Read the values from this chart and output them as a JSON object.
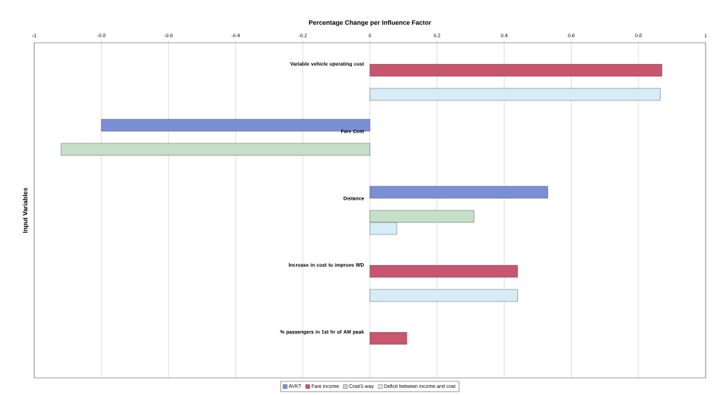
{
  "chart_data": {
    "type": "bar",
    "orientation": "horizontal",
    "title": "Percentage Change per Influence Factor",
    "ylabel": "Input Variables",
    "categories": [
      "Variable vehicle operating cost",
      "Fare Cost",
      "Distance",
      "Increase in cost to improve WD",
      "% passengers in 1st hr of AM peak"
    ],
    "series": [
      {
        "name": "AVKT",
        "color": "#7b8fd6",
        "values": [
          null,
          -0.8,
          0.53,
          null,
          null
        ]
      },
      {
        "name": "Fare income",
        "color": "#c8566e",
        "values": [
          0.87,
          null,
          null,
          0.44,
          0.11
        ]
      },
      {
        "name": "Cost/1-way",
        "color": "#c6dfc9",
        "values": [
          null,
          -0.92,
          0.31,
          null,
          null
        ]
      },
      {
        "name": "Deficit between income and cost",
        "color": "#d6ecf7",
        "values": [
          0.865,
          null,
          0.08,
          0.44,
          null
        ]
      }
    ],
    "xlim": [
      -1,
      1
    ],
    "xticks": [
      -1,
      -0.8,
      -0.6,
      -0.4,
      -0.2,
      0,
      0.2,
      0.4,
      0.6,
      0.8,
      1
    ],
    "grid": "x",
    "legend": "bottom"
  }
}
